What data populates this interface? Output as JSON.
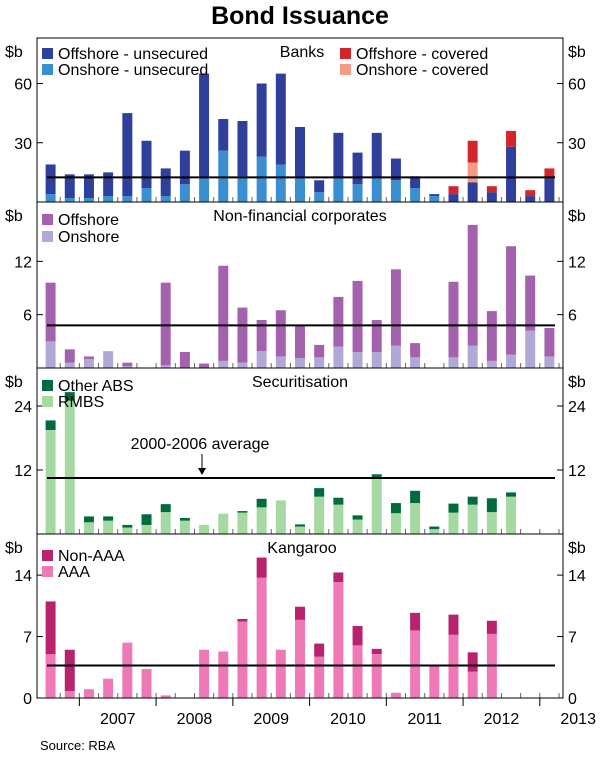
{
  "title": "Bond Issuance",
  "source": "Source: RBA",
  "x_labels": [
    "2007",
    "2008",
    "2009",
    "2010",
    "2011",
    "2012",
    "2013"
  ],
  "unit_label": "$b",
  "colors": {
    "banks_offshore_unsecured": "#2E3F9C",
    "banks_onshore_unsecured": "#3A8FD0",
    "banks_offshore_covered": "#D3262B",
    "banks_onshore_covered": "#F79A82",
    "nfc_offshore": "#A462AE",
    "nfc_onshore": "#B1A9D5",
    "sec_other_abs": "#006B3C",
    "sec_rmbs": "#A6D9A1",
    "kang_non_aaa": "#B7236F",
    "kang_aaa": "#EE79B6"
  },
  "chart_data": [
    {
      "type": "bar",
      "stacked": true,
      "title": "Banks",
      "unit": "$b",
      "ylim": [
        0,
        80
      ],
      "yticks": [
        30,
        60
      ],
      "categories": [
        "2006Q3",
        "2006Q4",
        "2007Q1",
        "2007Q2",
        "2007Q3",
        "2007Q4",
        "2008Q1",
        "2008Q2",
        "2008Q3",
        "2008Q4",
        "2009Q1",
        "2009Q2",
        "2009Q3",
        "2009Q4",
        "2010Q1",
        "2010Q2",
        "2010Q3",
        "2010Q4",
        "2011Q1",
        "2011Q2",
        "2011Q3",
        "2011Q4",
        "2012Q1",
        "2012Q2",
        "2012Q3",
        "2012Q4",
        "2013Q1"
      ],
      "series": [
        {
          "name": "Onshore - unsecured",
          "color_key": "banks_onshore_unsecured",
          "values": [
            4,
            2,
            2,
            3,
            3,
            7,
            3,
            9,
            12,
            26,
            13,
            23,
            19,
            12,
            5,
            12,
            9,
            12,
            11,
            7,
            3,
            0,
            0,
            0,
            0,
            0,
            0
          ]
        },
        {
          "name": "Offshore - unsecured",
          "color_key": "banks_offshore_unsecured",
          "values": [
            15,
            12,
            12,
            12,
            42,
            24,
            14,
            17,
            53,
            16,
            28,
            37,
            46,
            26,
            6,
            23,
            16,
            23,
            11,
            6,
            1,
            4,
            10,
            5,
            28,
            3,
            12
          ]
        },
        {
          "name": "Onshore - covered",
          "color_key": "banks_onshore_covered",
          "values": [
            0,
            0,
            0,
            0,
            0,
            0,
            0,
            0,
            0,
            0,
            0,
            0,
            0,
            0,
            0,
            0,
            0,
            0,
            0,
            0,
            0,
            0,
            10,
            0,
            0,
            0,
            0
          ]
        },
        {
          "name": "Offshore - covered",
          "color_key": "banks_offshore_covered",
          "values": [
            0,
            0,
            0,
            0,
            0,
            0,
            0,
            0,
            0,
            0,
            0,
            0,
            0,
            0,
            0,
            0,
            0,
            0,
            0,
            0,
            0,
            4,
            11,
            3,
            8,
            3,
            5
          ]
        }
      ],
      "average_line": 12.5
    },
    {
      "type": "bar",
      "stacked": true,
      "title": "Non-financial corporates",
      "unit": "$b",
      "ylim": [
        0,
        18
      ],
      "yticks": [
        6,
        12
      ],
      "categories": [
        "2006Q3",
        "2006Q4",
        "2007Q1",
        "2007Q2",
        "2007Q3",
        "2007Q4",
        "2008Q1",
        "2008Q2",
        "2008Q3",
        "2008Q4",
        "2009Q1",
        "2009Q2",
        "2009Q3",
        "2009Q4",
        "2010Q1",
        "2010Q2",
        "2010Q3",
        "2010Q4",
        "2011Q1",
        "2011Q2",
        "2011Q3",
        "2011Q4",
        "2012Q1",
        "2012Q2",
        "2012Q3",
        "2012Q4",
        "2013Q1"
      ],
      "series": [
        {
          "name": "Onshore",
          "color_key": "nfc_onshore",
          "values": [
            3.0,
            0.6,
            1.0,
            1.9,
            0.2,
            0,
            0.3,
            0,
            0,
            0.8,
            0.6,
            1.9,
            1.3,
            1.1,
            1.2,
            2.4,
            1.8,
            1.8,
            2.5,
            1.2,
            0,
            1.2,
            2.5,
            0.8,
            1.5,
            4.2,
            1.3
          ]
        },
        {
          "name": "Offshore",
          "color_key": "nfc_offshore",
          "values": [
            6.6,
            1.5,
            0.3,
            0,
            0.4,
            0,
            9.3,
            1.8,
            0.5,
            10.7,
            6.2,
            3.5,
            5.2,
            3.7,
            1.4,
            5.6,
            8.0,
            3.6,
            8.6,
            1.6,
            0,
            8.5,
            13.6,
            5.6,
            12.2,
            6.2,
            3.2
          ]
        }
      ],
      "average_line": 4.8
    },
    {
      "type": "bar",
      "stacked": true,
      "title": "Securitisation",
      "unit": "$b",
      "ylim": [
        0,
        30
      ],
      "yticks": [
        12,
        24
      ],
      "categories": [
        "2006Q3",
        "2006Q4",
        "2007Q1",
        "2007Q2",
        "2007Q3",
        "2007Q4",
        "2008Q1",
        "2008Q2",
        "2008Q3",
        "2008Q4",
        "2009Q1",
        "2009Q2",
        "2009Q3",
        "2009Q4",
        "2010Q1",
        "2010Q2",
        "2010Q3",
        "2010Q4",
        "2011Q1",
        "2011Q2",
        "2011Q3",
        "2011Q4",
        "2012Q1",
        "2012Q2",
        "2012Q3",
        "2012Q4",
        "2013Q1"
      ],
      "series": [
        {
          "name": "RMBS",
          "color_key": "sec_rmbs",
          "values": [
            19.5,
            25.0,
            2.2,
            2.5,
            1.2,
            1.7,
            4.1,
            2.5,
            1.7,
            3.8,
            4.0,
            5.0,
            6.3,
            1.4,
            7.0,
            5.5,
            2.7,
            10.7,
            3.9,
            5.8,
            0.9,
            4.0,
            5.5,
            4.1,
            7.0,
            0,
            0
          ]
        },
        {
          "name": "Other ABS",
          "color_key": "sec_other_abs",
          "values": [
            1.8,
            1.6,
            1.1,
            0.8,
            0.5,
            2.0,
            1.5,
            0.5,
            0,
            0,
            0.3,
            1.6,
            0,
            0.4,
            1.6,
            1.3,
            0.8,
            0.5,
            1.9,
            2.3,
            0.5,
            1.7,
            1.5,
            2.6,
            0.8,
            0,
            0
          ]
        }
      ],
      "average_line": 10.5,
      "annotation": "2000-2006 average"
    },
    {
      "type": "bar",
      "stacked": true,
      "title": "Kangaroo",
      "unit": "$b",
      "ylim": [
        0,
        18
      ],
      "yticks": [
        0,
        7,
        14
      ],
      "categories": [
        "2006Q3",
        "2006Q4",
        "2007Q1",
        "2007Q2",
        "2007Q3",
        "2007Q4",
        "2008Q1",
        "2008Q2",
        "2008Q3",
        "2008Q4",
        "2009Q1",
        "2009Q2",
        "2009Q3",
        "2009Q4",
        "2010Q1",
        "2010Q2",
        "2010Q3",
        "2010Q4",
        "2011Q1",
        "2011Q2",
        "2011Q3",
        "2011Q4",
        "2012Q1",
        "2012Q2",
        "2012Q3",
        "2012Q4",
        "2013Q1"
      ],
      "series": [
        {
          "name": "AAA",
          "color_key": "kang_aaa",
          "values": [
            5.0,
            0.8,
            1.0,
            2.2,
            6.3,
            3.3,
            0.3,
            0,
            5.5,
            5.3,
            8.7,
            13.7,
            5.5,
            8.9,
            4.7,
            13.2,
            6.0,
            5.0,
            0.6,
            7.7,
            3.7,
            7.2,
            3.0,
            7.3,
            0,
            0,
            0
          ]
        },
        {
          "name": "Non-AAA",
          "color_key": "kang_non_aaa",
          "values": [
            6.0,
            4.7,
            0,
            0,
            0,
            0,
            0,
            0,
            0,
            0,
            0.3,
            2.3,
            0,
            1.5,
            1.5,
            1.1,
            2.2,
            0.6,
            0,
            2.0,
            0,
            2.3,
            2.2,
            1.5,
            0,
            0,
            0
          ]
        }
      ],
      "average_line": 3.7
    }
  ]
}
